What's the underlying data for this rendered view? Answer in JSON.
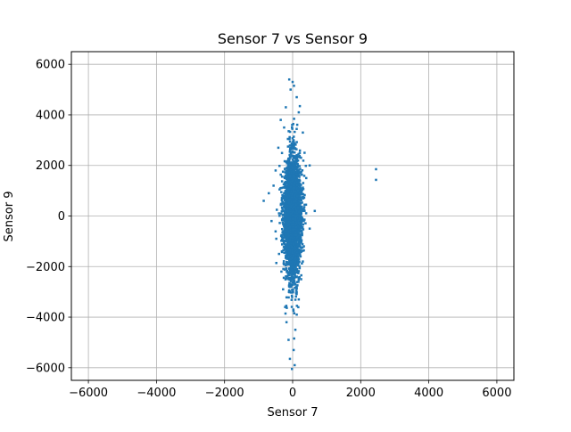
{
  "chart_data": {
    "type": "scatter",
    "title": "Sensor 7 vs Sensor 9",
    "xlabel": "Sensor 7",
    "ylabel": "Sensor 9",
    "xlim": [
      -6500,
      6500
    ],
    "ylim": [
      -6500,
      6500
    ],
    "xticks": [
      -6000,
      -4000,
      -2000,
      0,
      2000,
      4000,
      6000
    ],
    "yticks": [
      -6000,
      -4000,
      -2000,
      0,
      2000,
      4000,
      6000
    ],
    "xtick_labels": [
      "−6000",
      "−4000",
      "−2000",
      "0",
      "2000",
      "4000",
      "6000"
    ],
    "ytick_labels": [
      "−6000",
      "−4000",
      "−2000",
      "0",
      "2000",
      "4000",
      "6000"
    ],
    "grid": true,
    "color": "#1f77b4",
    "marker": "square",
    "sample_points": [
      [
        -100,
        5400
      ],
      [
        0,
        5300
      ],
      [
        40,
        5150
      ],
      [
        -60,
        5000
      ],
      [
        120,
        4700
      ],
      [
        -200,
        4300
      ],
      [
        180,
        4100
      ],
      [
        -350,
        3800
      ],
      [
        -250,
        3500
      ],
      [
        300,
        3300
      ],
      [
        -420,
        2700
      ],
      [
        350,
        2500
      ],
      [
        500,
        2000
      ],
      [
        -500,
        1800
      ],
      [
        400,
        1500
      ],
      [
        -560,
        1200
      ],
      [
        -700,
        900
      ],
      [
        -850,
        600
      ],
      [
        650,
        200
      ],
      [
        -620,
        -200
      ],
      [
        500,
        -500
      ],
      [
        -480,
        -900
      ],
      [
        330,
        -1200
      ],
      [
        -400,
        -1500
      ],
      [
        300,
        -1800
      ],
      [
        -330,
        -2200
      ],
      [
        250,
        -2500
      ],
      [
        -280,
        -2900
      ],
      [
        180,
        -3300
      ],
      [
        -220,
        -3600
      ],
      [
        120,
        -3900
      ],
      [
        -180,
        -4200
      ],
      [
        80,
        -4500
      ],
      [
        -120,
        -4900
      ],
      [
        30,
        -5300
      ],
      [
        -80,
        -5650
      ],
      [
        60,
        -5900
      ],
      [
        -20,
        -6050
      ],
      [
        2450,
        1850
      ],
      [
        2450,
        1430
      ]
    ],
    "dense_core": {
      "n": 3200,
      "x_mean": 0,
      "x_std": 140,
      "y_mean": 0,
      "y_std": 1200
    }
  }
}
